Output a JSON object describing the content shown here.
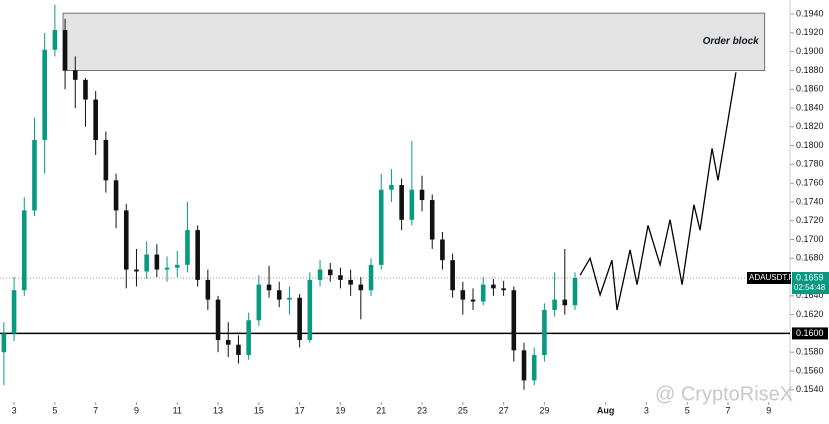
{
  "chart_data": {
    "type": "candlestick",
    "x": [
      2.5,
      3,
      3.5,
      4,
      4.5,
      5,
      5.5,
      6,
      6.5,
      7,
      7.5,
      8,
      8.5,
      9,
      9.5,
      10,
      10.5,
      11,
      11.5,
      12,
      12.5,
      13,
      13.5,
      14,
      14.5,
      15,
      15.5,
      16,
      16.5,
      17,
      17.5,
      18,
      18.5,
      19,
      19.5,
      20,
      20.5,
      21,
      21.5,
      22,
      22.5,
      23,
      23.5,
      24,
      24.5,
      25,
      25.5,
      26,
      26.5,
      27,
      27.5,
      28,
      28.5,
      29,
      29.5,
      30,
      30.5
    ],
    "open": [
      0.158,
      0.16,
      0.1646,
      0.1731,
      0.1806,
      0.1902,
      0.1923,
      0.188,
      0.187,
      0.1849,
      0.1806,
      0.1763,
      0.1731,
      0.1668,
      0.1666,
      0.1684,
      0.1668,
      0.167,
      0.1673,
      0.171,
      0.1657,
      0.1636,
      0.1593,
      0.1588,
      0.1577,
      0.1614,
      0.1652,
      0.1646,
      0.1636,
      0.1638,
      0.1593,
      0.1657,
      0.1668,
      0.1662,
      0.1657,
      0.1652,
      0.1646,
      0.1673,
      0.1753,
      0.1758,
      0.1721,
      0.1753,
      0.1742,
      0.17,
      0.1678,
      0.1646,
      0.1636,
      0.1634,
      0.1652,
      0.1648,
      0.1646,
      0.1582,
      0.155,
      0.1577,
      0.1625,
      0.1636,
      0.163
    ],
    "high": [
      0.1612,
      0.166,
      0.1745,
      0.183,
      0.192,
      0.195,
      0.1935,
      0.1895,
      0.1872,
      0.1858,
      0.1815,
      0.177,
      0.1738,
      0.169,
      0.1698,
      0.1695,
      0.1682,
      0.1688,
      0.174,
      0.1715,
      0.1668,
      0.164,
      0.1612,
      0.1598,
      0.1622,
      0.1662,
      0.1672,
      0.1655,
      0.165,
      0.1642,
      0.1665,
      0.1678,
      0.1675,
      0.167,
      0.1668,
      0.166,
      0.168,
      0.177,
      0.1775,
      0.1765,
      0.1805,
      0.1768,
      0.1748,
      0.1708,
      0.1685,
      0.1655,
      0.1648,
      0.166,
      0.1658,
      0.1656,
      0.165,
      0.159,
      0.1585,
      0.1632,
      0.1665,
      0.169,
      0.1665
    ],
    "low": [
      0.1545,
      0.1592,
      0.164,
      0.1725,
      0.177,
      0.1895,
      0.186,
      0.184,
      0.182,
      0.179,
      0.175,
      0.1712,
      0.1648,
      0.165,
      0.1658,
      0.166,
      0.1655,
      0.166,
      0.1665,
      0.165,
      0.1625,
      0.158,
      0.1575,
      0.1568,
      0.1572,
      0.1608,
      0.1638,
      0.1628,
      0.162,
      0.1585,
      0.159,
      0.165,
      0.1655,
      0.1648,
      0.164,
      0.1615,
      0.164,
      0.1668,
      0.174,
      0.171,
      0.1715,
      0.173,
      0.169,
      0.1668,
      0.1638,
      0.162,
      0.1625,
      0.163,
      0.164,
      0.164,
      0.157,
      0.154,
      0.1545,
      0.157,
      0.1618,
      0.162,
      0.1625
    ],
    "close": [
      0.16,
      0.1646,
      0.1731,
      0.1806,
      0.1902,
      0.1923,
      0.188,
      0.187,
      0.1849,
      0.1806,
      0.1763,
      0.1731,
      0.1668,
      0.1666,
      0.1684,
      0.1668,
      0.167,
      0.1673,
      0.171,
      0.1657,
      0.1636,
      0.1593,
      0.1588,
      0.1577,
      0.1614,
      0.1652,
      0.1646,
      0.1636,
      0.1638,
      0.1593,
      0.1657,
      0.1668,
      0.1662,
      0.1657,
      0.1652,
      0.1646,
      0.1673,
      0.1753,
      0.1758,
      0.1721,
      0.1753,
      0.1742,
      0.17,
      0.1678,
      0.1646,
      0.1636,
      0.1634,
      0.1652,
      0.1648,
      0.1646,
      0.1582,
      0.155,
      0.1577,
      0.1625,
      0.1636,
      0.163,
      0.1659
    ],
    "up_color": "#089981",
    "down_color": "#111111",
    "projection": {
      "x": [
        30.75,
        31.24,
        31.73,
        32.31,
        32.56,
        33.2,
        33.54,
        34.08,
        34.67,
        35.16,
        35.75,
        36.33,
        36.63,
        37.22,
        37.51,
        38.39
      ],
      "values": [
        0.1662,
        0.168,
        0.1641,
        0.1678,
        0.1625,
        0.1689,
        0.1652,
        0.1715,
        0.1673,
        0.1721,
        0.1652,
        0.1737,
        0.171,
        0.1797,
        0.1763,
        0.1878
      ]
    },
    "order_block": {
      "label": "Order block",
      "x": [
        5.4,
        39.8
      ],
      "y": [
        0.188,
        0.1941
      ]
    },
    "support": {
      "value": 0.16,
      "label": "0.1600"
    },
    "last_price": {
      "value": 0.1659,
      "label": "0.1659",
      "symbol": "ADAUSDT.P",
      "countdown": "02:54:48"
    },
    "watermark": "@ CryptoRiseX",
    "xlim": [
      2.31,
      41.04
    ],
    "ylim": [
      0.1527,
      0.1955
    ],
    "xticks": [
      3,
      5,
      7,
      9,
      11,
      13,
      15,
      17,
      19,
      21,
      23,
      25,
      27,
      29,
      {
        "value": 32,
        "label": "Aug"
      },
      {
        "value": 34,
        "label": "3"
      },
      {
        "value": 36,
        "label": "5"
      },
      {
        "value": 38,
        "label": "7"
      },
      {
        "value": 40,
        "label": "9"
      }
    ],
    "yticks": [
      {
        "value": 0.154,
        "label": "0.1540"
      },
      {
        "value": 0.156,
        "label": "0.1560"
      },
      {
        "value": 0.158,
        "label": "0.1580"
      },
      {
        "value": 0.162,
        "label": "0.1620"
      },
      {
        "value": 0.164,
        "label": "0.1640"
      },
      {
        "value": 0.168,
        "label": "0.1680"
      },
      {
        "value": 0.17,
        "label": "0.1700"
      },
      {
        "value": 0.172,
        "label": "0.1720"
      },
      {
        "value": 0.174,
        "label": "0.1740"
      },
      {
        "value": 0.176,
        "label": "0.1760"
      },
      {
        "value": 0.178,
        "label": "0.1780"
      },
      {
        "value": 0.18,
        "label": "0.1800"
      },
      {
        "value": 0.182,
        "label": "0.1820"
      },
      {
        "value": 0.184,
        "label": "0.1840"
      },
      {
        "value": 0.186,
        "label": "0.1860"
      },
      {
        "value": 0.188,
        "label": "0.1880"
      },
      {
        "value": 0.19,
        "label": "0.1900"
      },
      {
        "value": 0.192,
        "label": "0.1920"
      },
      {
        "value": 0.194,
        "label": "0.1940"
      }
    ]
  }
}
